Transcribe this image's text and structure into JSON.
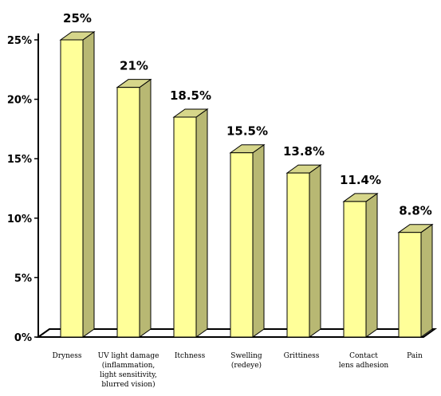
{
  "chart_data": {
    "type": "bar",
    "categories": [
      [
        "Dryness"
      ],
      [
        "UV light damage",
        "(inflammation,",
        "light sensitivity,",
        "blurred vision)"
      ],
      [
        "Itchness"
      ],
      [
        "Swelling",
        "(redeye)"
      ],
      [
        "Grittiness"
      ],
      [
        "Contact",
        "lens adhesion"
      ],
      [
        "Pain"
      ]
    ],
    "values": [
      25,
      21,
      18.5,
      15.5,
      13.8,
      11.4,
      8.8
    ],
    "data_labels": [
      "25%",
      "21%",
      "18.5%",
      "15.5%",
      "13.8%",
      "11.4%",
      "8.8%"
    ],
    "y_ticks": [
      {
        "value": 0,
        "label": "0%"
      },
      {
        "value": 5,
        "label": "5%"
      },
      {
        "value": 10,
        "label": "10%"
      },
      {
        "value": 15,
        "label": "15%"
      },
      {
        "value": 20,
        "label": "20%"
      },
      {
        "value": 25,
        "label": "25%"
      }
    ],
    "ylim": [
      0,
      25
    ],
    "grid": false,
    "legend": "none",
    "bar_colors": {
      "front": "#ffff99",
      "side": "#b8b873",
      "top": "#d6d68a",
      "stroke": "#000000"
    }
  }
}
